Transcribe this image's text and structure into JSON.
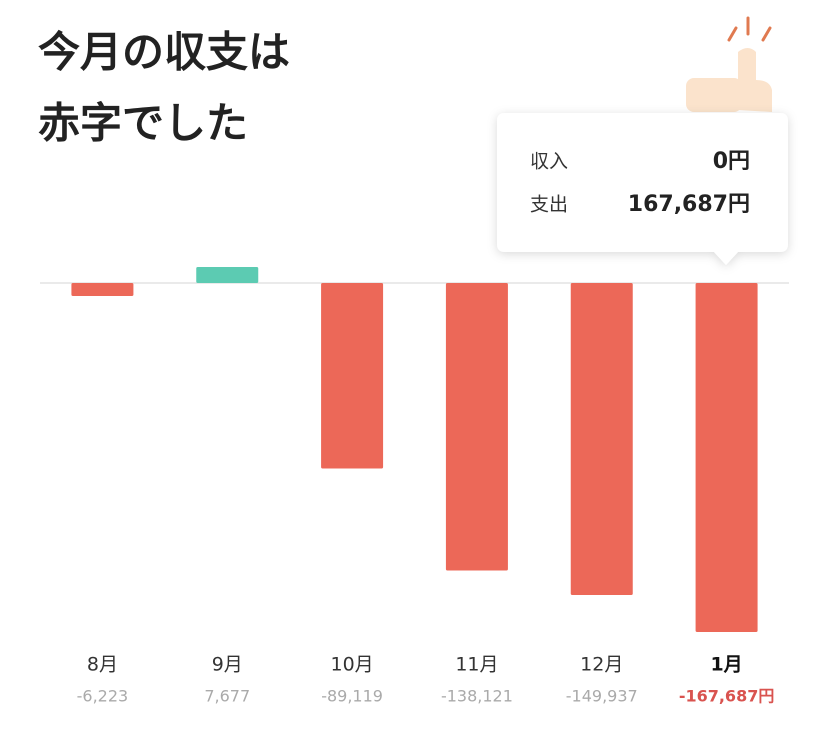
{
  "chart_data": {
    "type": "bar",
    "title": [
      "今月の収支は",
      "赤字でした"
    ],
    "categories": [
      "8月",
      "9月",
      "10月",
      "11月",
      "12月",
      "1月"
    ],
    "values": [
      -6223,
      7677,
      -89119,
      -138121,
      -149937,
      -167687
    ],
    "value_labels": [
      "-6,223",
      "7,677",
      "-89,119",
      "-138,121",
      "-149,937",
      "-167,687円"
    ],
    "negative_color": "#ec6858",
    "positive_color": "#5ccbb2",
    "ylim": [
      -170000,
      10000
    ],
    "tooltip": {
      "rows": [
        {
          "label": "収入",
          "value": "0円"
        },
        {
          "label": "支出",
          "value": "167,687円"
        }
      ]
    }
  }
}
